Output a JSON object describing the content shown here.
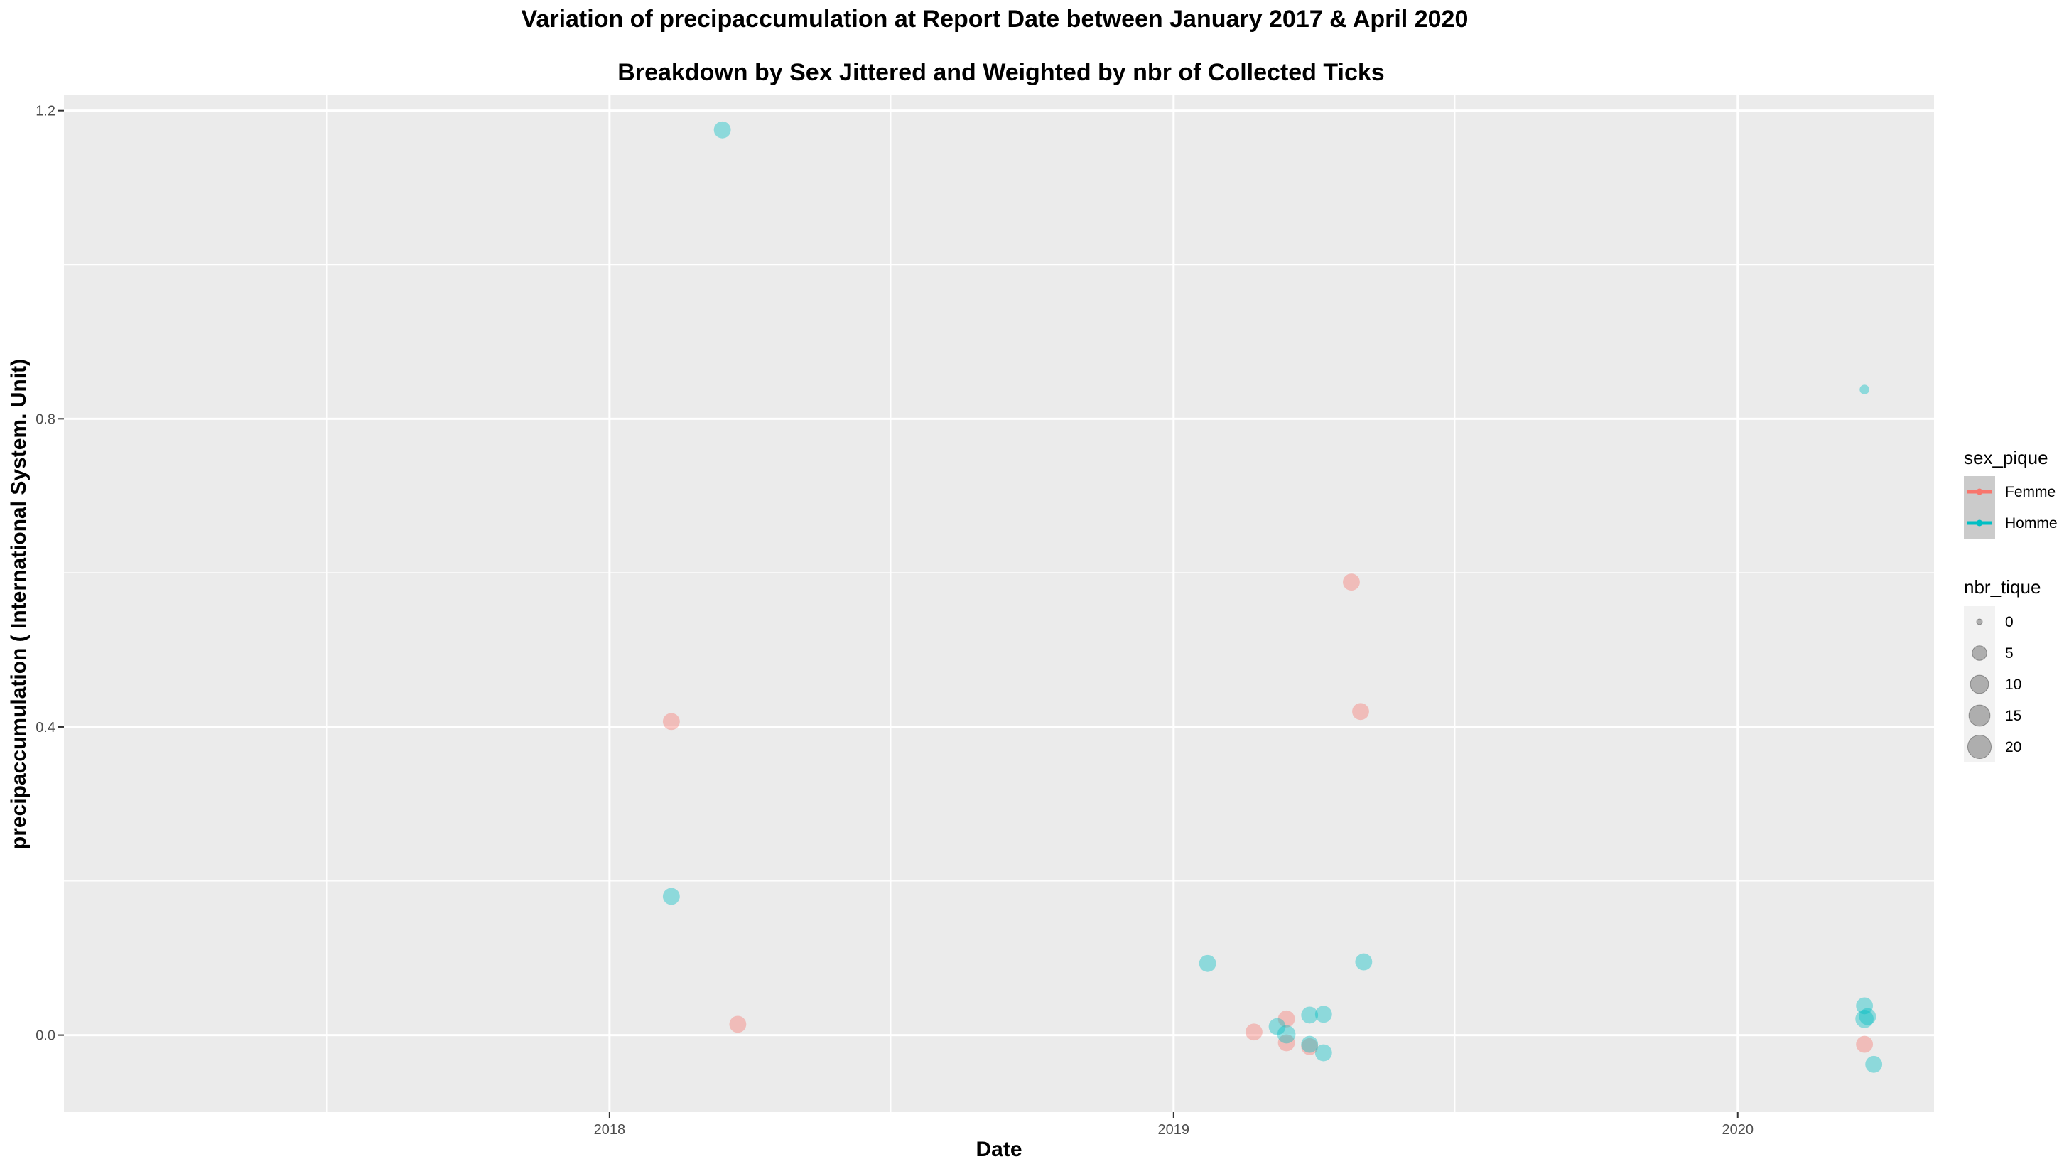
{
  "chart_data": {
    "type": "scatter",
    "title": "Variation of  precipaccumulation  at Report Date between January 2017 & April 2020",
    "subtitle": "Breakdown by Sex Jittered and Weighted by nbr of Collected Ticks",
    "xlabel": "Date",
    "ylabel": "precipaccumulation ( International System. Unit)",
    "xlim": [
      "2017-01-13",
      "2020-05-07"
    ],
    "ylim": [
      -0.1,
      1.22
    ],
    "x_ticks": [
      {
        "label": "2018",
        "date": "2018-01-01"
      },
      {
        "label": "2019",
        "date": "2019-01-01"
      },
      {
        "label": "2020",
        "date": "2020-01-01"
      }
    ],
    "x_minor_ticks": [
      "2017-07-02",
      "2018-07-02",
      "2019-07-02"
    ],
    "y_ticks": [
      0.0,
      0.4,
      0.8,
      1.2
    ],
    "y_tick_labels": [
      "0.0",
      "0.4",
      "0.8",
      "1.2"
    ],
    "y_minor_ticks": [
      0.2,
      0.6,
      1.0
    ],
    "grid": true,
    "colors": {
      "Femme": "#F8766D",
      "Homme": "#00BFC4",
      "panel": "#EBEBEB",
      "grid": "#FFFFFF"
    },
    "point_alpha": 0.4,
    "legend_position": "right",
    "legends": {
      "color": {
        "title": "sex_pique",
        "entries": [
          "Femme",
          "Homme"
        ]
      },
      "size": {
        "title": "nbr_tique",
        "entries": [
          "0",
          "5",
          "10",
          "15",
          "20"
        ]
      }
    },
    "series": [
      {
        "name": "Femme",
        "points": [
          {
            "date": "2018-02-10",
            "value": 0.407,
            "nbr_tique": 8
          },
          {
            "date": "2018-03-25",
            "value": 0.014,
            "nbr_tique": 8
          },
          {
            "date": "2019-02-22",
            "value": 0.004,
            "nbr_tique": 8
          },
          {
            "date": "2019-03-15",
            "value": 0.021,
            "nbr_tique": 8
          },
          {
            "date": "2019-03-15",
            "value": -0.01,
            "nbr_tique": 8
          },
          {
            "date": "2019-03-30",
            "value": -0.015,
            "nbr_tique": 8
          },
          {
            "date": "2019-04-26",
            "value": 0.588,
            "nbr_tique": 8
          },
          {
            "date": "2019-05-02",
            "value": 0.42,
            "nbr_tique": 8
          },
          {
            "date": "2020-03-23",
            "value": -0.012,
            "nbr_tique": 8
          }
        ]
      },
      {
        "name": "Homme",
        "points": [
          {
            "date": "2018-03-15",
            "value": 1.175,
            "nbr_tique": 8
          },
          {
            "date": "2018-02-10",
            "value": 0.18,
            "nbr_tique": 8
          },
          {
            "date": "2019-01-23",
            "value": 0.093,
            "nbr_tique": 8
          },
          {
            "date": "2019-03-09",
            "value": 0.011,
            "nbr_tique": 8
          },
          {
            "date": "2019-03-15",
            "value": 0.001,
            "nbr_tique": 10
          },
          {
            "date": "2019-03-30",
            "value": 0.026,
            "nbr_tique": 8
          },
          {
            "date": "2019-03-30",
            "value": -0.012,
            "nbr_tique": 8
          },
          {
            "date": "2019-04-08",
            "value": 0.027,
            "nbr_tique": 8
          },
          {
            "date": "2019-04-08",
            "value": -0.023,
            "nbr_tique": 8
          },
          {
            "date": "2019-05-04",
            "value": 0.095,
            "nbr_tique": 8
          },
          {
            "date": "2020-03-23",
            "value": 0.838,
            "nbr_tique": 1
          },
          {
            "date": "2020-03-23",
            "value": 0.038,
            "nbr_tique": 8
          },
          {
            "date": "2020-03-23",
            "value": 0.021,
            "nbr_tique": 10
          },
          {
            "date": "2020-03-25",
            "value": 0.024,
            "nbr_tique": 8
          },
          {
            "date": "2020-03-29",
            "value": -0.038,
            "nbr_tique": 8
          }
        ]
      }
    ]
  }
}
